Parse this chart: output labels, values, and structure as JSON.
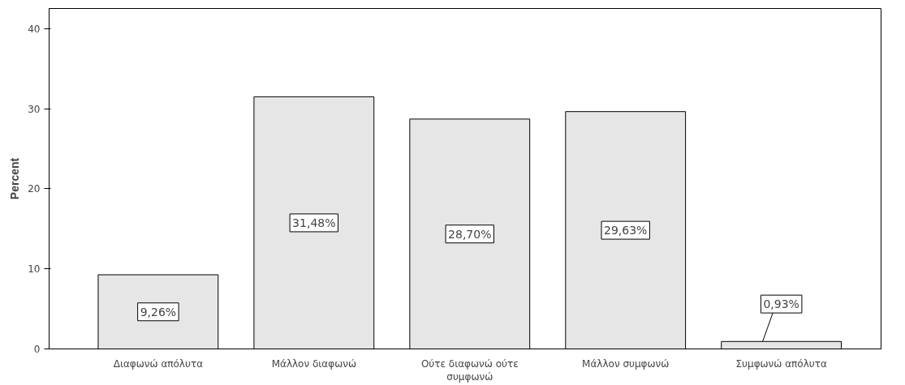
{
  "chart_data": {
    "type": "bar",
    "ylabel": "Percent",
    "categories": [
      "Διαφωνώ απόλυτα",
      "Μάλλον διαφωνώ",
      "Ούτε διαφωνώ ούτε συμφωνώ",
      "Μάλλον συμφωνώ",
      "Συμφωνώ απόλυτα"
    ],
    "values": [
      9.26,
      31.48,
      28.7,
      29.63,
      0.93
    ],
    "value_labels": [
      "9,26%",
      "31,48%",
      "28,70%",
      "29,63%",
      "0,93%"
    ],
    "color": "#e6e6e6",
    "ylim": [
      0,
      42.5
    ],
    "yticks": [
      0,
      10,
      20,
      30,
      40
    ],
    "grid": false
  }
}
